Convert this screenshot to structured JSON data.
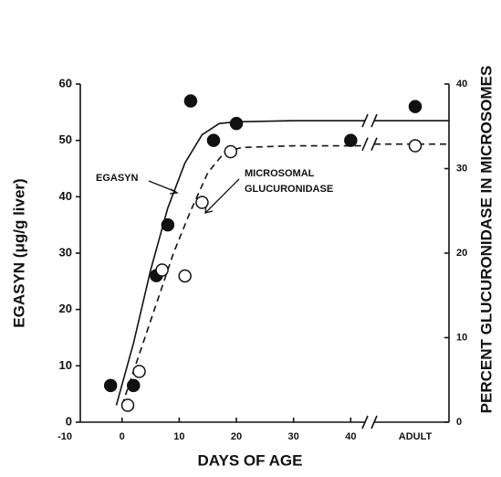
{
  "chart_data": {
    "type": "scatter",
    "xlabel": "DAYS OF AGE",
    "ylabel": "EGASYN (μg/g liver)",
    "y2label": "PERCENT GLUCURONIDASE IN MICROSOMES",
    "xlim": [
      -7.3,
      42.5
    ],
    "xticks": [
      -10,
      0,
      10,
      20,
      30,
      40
    ],
    "adult_label": "ADULT",
    "ylim": [
      0,
      60
    ],
    "yticks": [
      0,
      10,
      20,
      30,
      40,
      50,
      60
    ],
    "y2lim": [
      0,
      40
    ],
    "y2ticks": [
      0,
      10,
      20,
      30,
      40
    ],
    "series": [
      {
        "name": "EGASYN",
        "marker": "filled",
        "line": "solid",
        "x": [
          -2,
          2,
          6,
          8,
          12,
          16,
          20,
          40
        ],
        "values": [
          6.5,
          6.5,
          26,
          35,
          57,
          50,
          53,
          50
        ],
        "adult_value": 56,
        "fit_x": [
          -1,
          2,
          5,
          8,
          11,
          14,
          17,
          20,
          30,
          42.5
        ],
        "fit_values": [
          3,
          14,
          27,
          38,
          46,
          51,
          53,
          53.3,
          53.5,
          53.5
        ],
        "adult_fit": 53.5
      },
      {
        "name_lines": [
          "MICROSOMAL",
          "GLUCURONIDASE"
        ],
        "marker": "open",
        "line": "dashed",
        "axis": "y2",
        "x": [
          1,
          3,
          7,
          11,
          14,
          19
        ],
        "values": [
          2,
          6,
          18,
          17.3,
          26,
          32
        ],
        "adult_value": 32.7,
        "fit_x": [
          0,
          3,
          6,
          9,
          12,
          15,
          18,
          21,
          30,
          42.5
        ],
        "fit_values": [
          2,
          8,
          14,
          20,
          25,
          29.5,
          32,
          32.5,
          32.7,
          32.7
        ],
        "adult_fit": 32.9
      }
    ]
  }
}
